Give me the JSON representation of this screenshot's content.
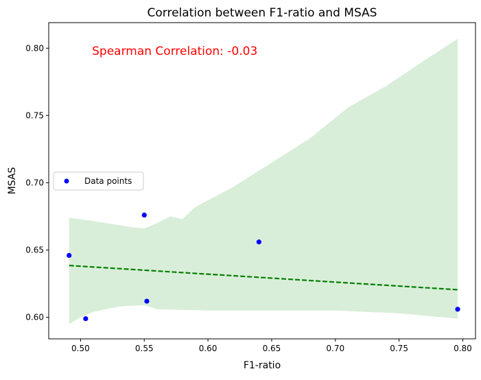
{
  "chart_data": {
    "type": "scatter",
    "title": "Correlation between F1-ratio and MSAS",
    "xlabel": "F1-ratio",
    "ylabel": "MSAS",
    "xlim": [
      0.475,
      0.81
    ],
    "ylim": [
      0.584,
      0.819
    ],
    "xticks": [
      0.5,
      0.55,
      0.6,
      0.65,
      0.7,
      0.75,
      0.8
    ],
    "xtick_labels": [
      "0.50",
      "0.55",
      "0.60",
      "0.65",
      "0.70",
      "0.75",
      "0.80"
    ],
    "yticks": [
      0.6,
      0.65,
      0.7,
      0.75,
      0.8
    ],
    "ytick_labels": [
      "0.60",
      "0.65",
      "0.70",
      "0.75",
      "0.80"
    ],
    "grid": false,
    "annotation": {
      "text": "Spearman Correlation: -0.03",
      "color": "#ff0000",
      "x": 0.509,
      "y": 0.795
    },
    "legend": {
      "placement": "center-left",
      "entries": [
        {
          "label": "Data points",
          "color": "#0000ff",
          "marker": "circle"
        }
      ]
    },
    "series": [
      {
        "name": "Data points",
        "color": "#0000ff",
        "points": [
          {
            "x": 0.491,
            "y": 0.646
          },
          {
            "x": 0.504,
            "y": 0.599
          },
          {
            "x": 0.55,
            "y": 0.676
          },
          {
            "x": 0.552,
            "y": 0.612
          },
          {
            "x": 0.64,
            "y": 0.656
          },
          {
            "x": 0.796,
            "y": 0.606
          }
        ]
      }
    ],
    "regression_line": {
      "color": "#008000",
      "style": "dashed",
      "x": [
        0.491,
        0.796
      ],
      "y": [
        0.6385,
        0.6205
      ]
    },
    "confidence_band": {
      "color": "#2ca02c",
      "upper": [
        {
          "x": 0.491,
          "y": 0.674
        },
        {
          "x": 0.5,
          "y": 0.673
        },
        {
          "x": 0.52,
          "y": 0.67
        },
        {
          "x": 0.54,
          "y": 0.667
        },
        {
          "x": 0.55,
          "y": 0.666
        },
        {
          "x": 0.56,
          "y": 0.67
        },
        {
          "x": 0.57,
          "y": 0.675
        },
        {
          "x": 0.58,
          "y": 0.673
        },
        {
          "x": 0.59,
          "y": 0.682
        },
        {
          "x": 0.62,
          "y": 0.697
        },
        {
          "x": 0.68,
          "y": 0.733
        },
        {
          "x": 0.71,
          "y": 0.756
        },
        {
          "x": 0.74,
          "y": 0.772
        },
        {
          "x": 0.77,
          "y": 0.791
        },
        {
          "x": 0.796,
          "y": 0.807
        }
      ],
      "lower": [
        {
          "x": 0.491,
          "y": 0.595
        },
        {
          "x": 0.5,
          "y": 0.6
        },
        {
          "x": 0.51,
          "y": 0.604
        },
        {
          "x": 0.53,
          "y": 0.608
        },
        {
          "x": 0.55,
          "y": 0.609
        },
        {
          "x": 0.56,
          "y": 0.606
        },
        {
          "x": 0.6,
          "y": 0.605
        },
        {
          "x": 0.7,
          "y": 0.605
        },
        {
          "x": 0.75,
          "y": 0.603
        },
        {
          "x": 0.796,
          "y": 0.599
        }
      ]
    }
  }
}
